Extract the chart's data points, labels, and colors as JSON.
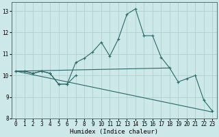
{
  "xlabel": "Humidex (Indice chaleur)",
  "bg_color": "#cce8e8",
  "grid_color": "#aacccc",
  "line_color": "#2a6868",
  "xlim": [
    -0.5,
    23.5
  ],
  "ylim": [
    8,
    13.4
  ],
  "yticks": [
    8,
    9,
    10,
    11,
    12,
    13
  ],
  "xticks": [
    0,
    1,
    2,
    3,
    4,
    5,
    6,
    7,
    8,
    9,
    10,
    11,
    12,
    13,
    14,
    15,
    16,
    17,
    18,
    19,
    20,
    21,
    22,
    23
  ],
  "lines": [
    {
      "x": [
        0,
        1,
        2,
        3,
        4,
        5,
        6,
        7,
        8,
        9,
        10,
        11,
        12,
        13,
        14,
        15,
        16,
        17,
        18,
        19,
        20,
        21,
        22,
        23
      ],
      "y": [
        10.2,
        10.2,
        10.1,
        10.2,
        10.1,
        9.6,
        9.6,
        10.6,
        10.8,
        11.1,
        11.55,
        10.9,
        11.7,
        12.85,
        13.1,
        11.85,
        11.85,
        10.85,
        10.35,
        9.7,
        9.85,
        10.0,
        8.85,
        8.35
      ],
      "has_markers": true
    },
    {
      "x": [
        0,
        18
      ],
      "y": [
        10.2,
        10.35
      ],
      "has_markers": false
    },
    {
      "x": [
        0,
        23
      ],
      "y": [
        10.2,
        8.3
      ],
      "has_markers": false
    },
    {
      "x": [
        0,
        1,
        2,
        3,
        4,
        5,
        6,
        7
      ],
      "y": [
        10.2,
        10.2,
        10.1,
        10.2,
        10.1,
        9.6,
        9.6,
        10.0
      ],
      "has_markers": true
    }
  ]
}
